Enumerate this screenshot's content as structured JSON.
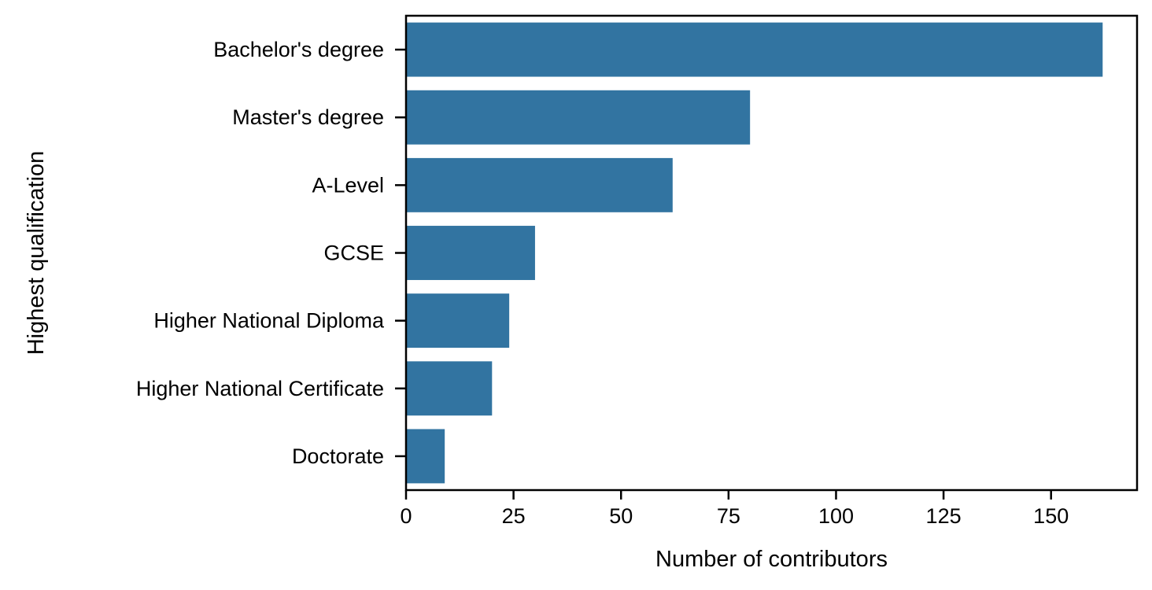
{
  "chart_data": {
    "type": "bar",
    "orientation": "horizontal",
    "categories": [
      "Bachelor's degree",
      "Master's degree",
      "A-Level",
      "GCSE",
      "Higher National Diploma",
      "Higher National Certificate",
      "Doctorate"
    ],
    "values": [
      162,
      80,
      62,
      30,
      24,
      20,
      9
    ],
    "title": "",
    "xlabel": "Number of contributors",
    "ylabel": "Highest qualification",
    "xlim": [
      0,
      170
    ],
    "xticks": [
      0,
      25,
      50,
      75,
      100,
      125,
      150
    ],
    "grid": false,
    "bar_color": "#3274a1"
  }
}
